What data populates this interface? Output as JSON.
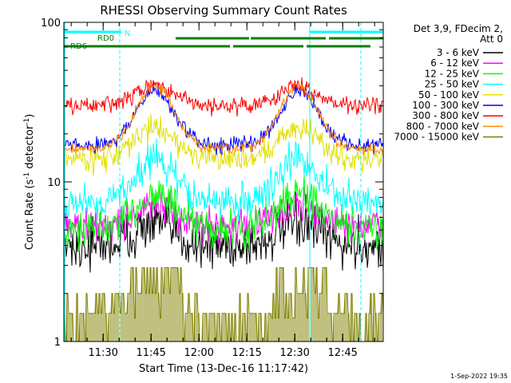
{
  "chart_data": {
    "type": "line",
    "title": "RHESSI Observing Summary Count Rates",
    "xlabel": "Start Time (13-Dec-16 11:17:42)",
    "ylabel_main": "Count Rate (s",
    "ylabel_sup1": "-1",
    "ylabel_mid": " detector",
    "ylabel_sup2": "-1",
    "ylabel_end": ")",
    "yscale": "log",
    "ylim": [
      1,
      100
    ],
    "xlim_minutes": [
      0,
      100
    ],
    "x_ticks": [
      {
        "label": "11:30",
        "min": 12.3
      },
      {
        "label": "11:45",
        "min": 27.3
      },
      {
        "label": "12:00",
        "min": 42.3
      },
      {
        "label": "12:15",
        "min": 57.3
      },
      {
        "label": "12:30",
        "min": 72.3
      },
      {
        "label": "12:45",
        "min": 87.3
      }
    ],
    "y_ticks": [
      {
        "label": "1",
        "value": 1
      },
      {
        "label": "10",
        "value": 10
      },
      {
        "label": "100",
        "value": 100
      }
    ],
    "legend": {
      "header_line1": "Det 3,9, FDecim 2,",
      "header_line2": "Att 0",
      "placement": "right"
    },
    "series": [
      {
        "name": "3 - 6 keV",
        "color": "#000000",
        "day": 5.5,
        "night": 4.0,
        "noise": 0.14
      },
      {
        "name": "6 - 12 keV",
        "color": "#ff00ff",
        "day": 7.0,
        "night": 5.3,
        "noise": 0.1
      },
      {
        "name": "12 - 25 keV",
        "color": "#00ff00",
        "day": 8.5,
        "night": 5.0,
        "noise": 0.11
      },
      {
        "name": "25 - 50 keV",
        "color": "#00ffff",
        "day": 14.0,
        "night": 7.5,
        "noise": 0.1
      },
      {
        "name": "50 - 100 keV",
        "color": "#e0e000",
        "day": 22.0,
        "night": 14.0,
        "noise": 0.07
      },
      {
        "name": "100 - 300 keV",
        "color": "#0000ff",
        "day": 37.0,
        "night": 17.0,
        "noise": 0.045
      },
      {
        "name": "300 - 800 keV",
        "color": "#ff0000",
        "day": 40.0,
        "night": 30.0,
        "noise": 0.045
      },
      {
        "name": "800 - 7000 keV",
        "color": "#ff8800",
        "day": 40.0,
        "night": 16.0,
        "noise": 0.03
      },
      {
        "name": "7000 - 15000 keV",
        "color": "#808000",
        "day": 0,
        "night": 0,
        "noise": 0
      }
    ],
    "peaks_minutes": [
      28.5,
      73.5
    ],
    "olive_levels": [
      2.0,
      2.8
    ],
    "markers": {
      "N_label": "N",
      "RD0_label": "RD0",
      "RD6_label": "RD6",
      "night_segments": [
        [
          0,
          18
        ],
        [
          77,
          100
        ]
      ],
      "rd0_segments": [
        [
          35,
          58
        ],
        [
          58.5,
          82
        ],
        [
          83,
          100
        ]
      ],
      "rd6_segments": [
        [
          0,
          12
        ],
        [
          12,
          52
        ],
        [
          53,
          75
        ],
        [
          76,
          96
        ]
      ],
      "dashed_lines_minutes": [
        17.5,
        93.0
      ],
      "solid_lines_minutes": [
        0,
        77.0
      ]
    }
  },
  "footer": {
    "timestamp": "1-Sep-2022 19:35"
  }
}
